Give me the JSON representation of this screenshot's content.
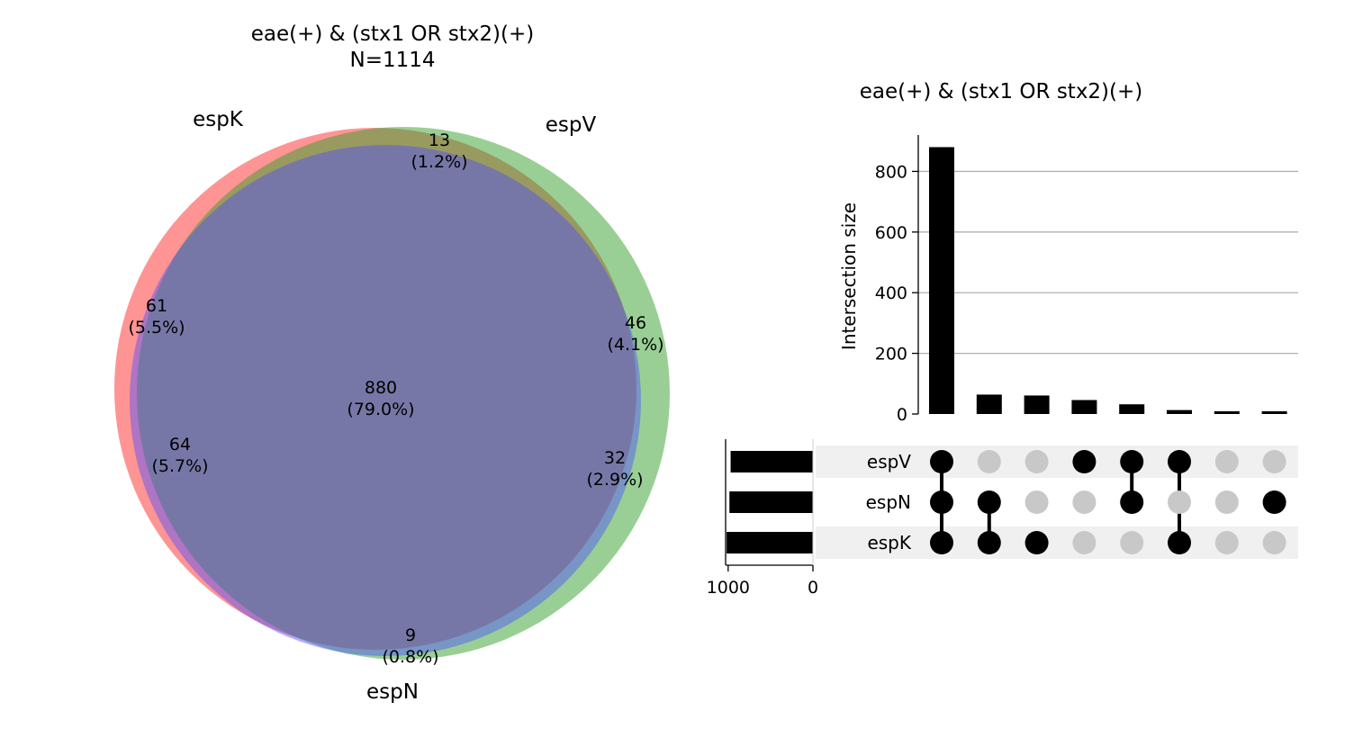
{
  "chart_data": [
    {
      "type": "venn",
      "title": "eae(+) & (stx1 OR stx2)(+)",
      "subtitle": "N=1114",
      "sets": [
        "espK",
        "espV",
        "espN"
      ],
      "colors": {
        "espK": "#ff4d4d",
        "espV": "#33a02c",
        "espN": "#4d4dff"
      },
      "regions": [
        {
          "id": "K_only",
          "count": "61",
          "pct": "(5.5%)"
        },
        {
          "id": "KV_only",
          "count": "13",
          "pct": "(1.2%)"
        },
        {
          "id": "V_only",
          "count": "46",
          "pct": "(4.1%)"
        },
        {
          "id": "KN_only",
          "count": "64",
          "pct": "(5.7%)"
        },
        {
          "id": "all",
          "count": "880",
          "pct": "(79.0%)"
        },
        {
          "id": "VN_only",
          "count": "32",
          "pct": "(2.9%)"
        },
        {
          "id": "N_only",
          "count": "9",
          "pct": "(0.8%)"
        }
      ]
    },
    {
      "type": "upset",
      "title": "eae(+) & (stx1 OR stx2)(+)",
      "ylabel": "Intersection size",
      "ylim": [
        0,
        920
      ],
      "yticks": [
        0,
        200,
        400,
        600,
        800
      ],
      "grid": true,
      "rows": [
        "espV",
        "espN",
        "espK"
      ],
      "set_sizes": {
        "espV": 971,
        "espN": 985,
        "espK": 1018
      },
      "set_size_xticks": [
        1000,
        0
      ],
      "set_size_xlim": [
        1030,
        0
      ],
      "intersections": [
        {
          "members": [
            "espV",
            "espN",
            "espK"
          ],
          "size": 880
        },
        {
          "members": [
            "espN",
            "espK"
          ],
          "size": 64
        },
        {
          "members": [
            "espK"
          ],
          "size": 61
        },
        {
          "members": [
            "espV"
          ],
          "size": 46
        },
        {
          "members": [
            "espV",
            "espN"
          ],
          "size": 32
        },
        {
          "members": [
            "espV",
            "espK"
          ],
          "size": 13
        },
        {
          "members": [],
          "size": 9
        },
        {
          "members": [
            "espN"
          ],
          "size": 9
        }
      ]
    }
  ]
}
